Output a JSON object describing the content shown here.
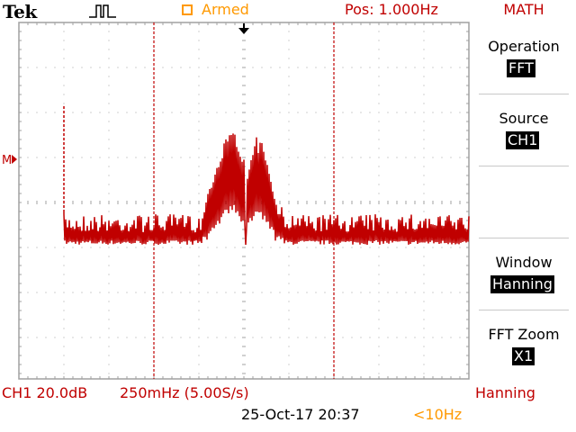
{
  "header": {
    "brand": "Tek",
    "trigger_icon": "pulse-trigger-icon",
    "acq_status": "Armed",
    "position": "Pos: 1.000Hz",
    "menu_title": "MATH"
  },
  "menu": {
    "operation_label": "Operation",
    "operation_value": "FFT",
    "source_label": "Source",
    "source_value": "CH1",
    "window_label": "Window",
    "window_value": "Hanning",
    "fftzoom_label": "FFT Zoom",
    "fftzoom_value": "X1"
  },
  "screen": {
    "marker_label": "M",
    "trigger_position_icon": "arrow-down-icon"
  },
  "status": {
    "channel": "CH1 20.0dB",
    "freq": "250mHz (5.00S/s)",
    "window": "Hanning",
    "datetime": "25-Oct-17 20:37",
    "trig_freq": "<10Hz"
  },
  "colors": {
    "trace": "#c00000",
    "grid": "#a0a0a0",
    "armed": "#ff9900"
  }
}
